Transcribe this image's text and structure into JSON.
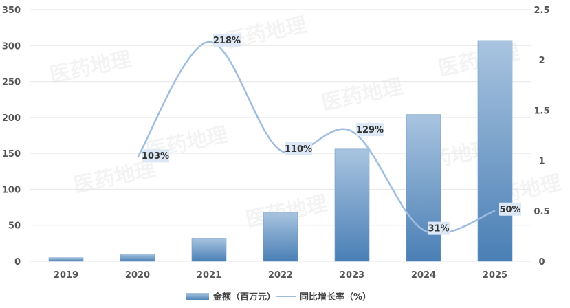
{
  "watermark": "医药地理",
  "chart_data": {
    "type": "bar",
    "categories": [
      "2019",
      "2020",
      "2021",
      "2022",
      "2023",
      "2024",
      "2025"
    ],
    "series": [
      {
        "name": "金额（百万元）",
        "type": "bar",
        "axis": "left",
        "values": [
          5,
          10,
          32,
          68,
          156,
          204,
          307
        ]
      },
      {
        "name": "同比增长率（%）",
        "type": "line",
        "axis": "right",
        "smooth": true,
        "values": [
          null,
          1.03,
          2.18,
          1.1,
          1.29,
          0.31,
          0.5
        ],
        "labels": [
          null,
          "103%",
          "218%",
          "110%",
          "129%",
          "31%",
          "50%"
        ]
      }
    ],
    "ylim": [
      0,
      350
    ],
    "yticks": [
      0,
      50,
      100,
      150,
      200,
      250,
      300,
      350
    ],
    "y2lim": [
      0,
      2.5
    ],
    "y2ticks": [
      "0",
      "0.5",
      "1",
      "1.5",
      "2",
      "2.5"
    ],
    "grid": true,
    "legend": "bottom",
    "colors": {
      "bar_top": "#a9c4e0",
      "bar_bottom": "#4a7fb5",
      "line": "#9fbde0",
      "label_bg": "#dce8f5"
    }
  }
}
